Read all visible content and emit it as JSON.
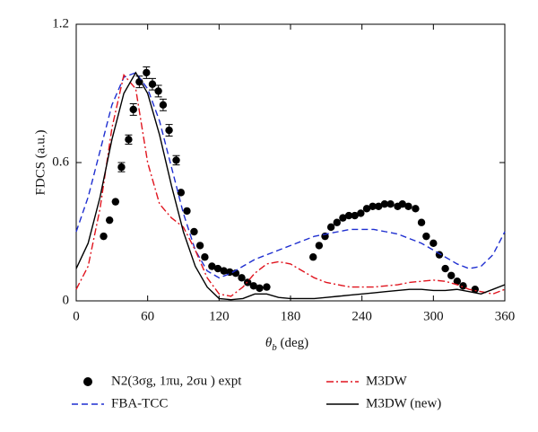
{
  "chart_data": {
    "type": "line",
    "xlabel": [
      "θ",
      "b",
      " (deg)"
    ],
    "ylabel": "FDCS (a.u.)",
    "xlim": [
      0,
      360
    ],
    "xticks": [
      0,
      60,
      120,
      180,
      240,
      300,
      360
    ],
    "ylim": [
      0,
      1.2
    ],
    "yticks": [
      0,
      0.6,
      1.2
    ],
    "series": [
      {
        "name": "N2(3σg, 1πu, 2σu ) expt",
        "type": "scatter",
        "color": "#000000",
        "x": [
          23,
          28,
          33,
          38,
          44,
          48,
          53,
          59,
          64,
          69,
          73,
          78,
          84,
          88,
          93,
          99,
          104,
          108,
          114,
          119,
          124,
          129,
          134,
          139,
          144,
          149,
          154,
          160,
          199,
          204,
          209,
          214,
          219,
          224,
          229,
          234,
          239,
          244,
          249,
          254,
          259,
          264,
          270,
          274,
          279,
          285,
          290,
          294,
          300,
          305,
          310,
          315,
          320,
          325,
          335
        ],
        "values": [
          0.28,
          0.35,
          0.43,
          0.58,
          0.7,
          0.83,
          0.95,
          0.99,
          0.94,
          0.91,
          0.85,
          0.74,
          0.61,
          0.47,
          0.39,
          0.3,
          0.24,
          0.19,
          0.15,
          0.14,
          0.13,
          0.125,
          0.12,
          0.1,
          0.08,
          0.065,
          0.055,
          0.06,
          0.19,
          0.24,
          0.28,
          0.32,
          0.34,
          0.36,
          0.37,
          0.37,
          0.38,
          0.4,
          0.41,
          0.41,
          0.42,
          0.42,
          0.41,
          0.42,
          0.41,
          0.4,
          0.34,
          0.28,
          0.25,
          0.2,
          0.14,
          0.11,
          0.085,
          0.065,
          0.05
        ],
        "errors": [
          null,
          null,
          null,
          0.02,
          0.02,
          0.025,
          0.025,
          0.025,
          0.025,
          0.025,
          0.025,
          0.025,
          0.02,
          null,
          null,
          null,
          null,
          null,
          null,
          null,
          null,
          null,
          null,
          null,
          null,
          null,
          null,
          null,
          null,
          null,
          null,
          null,
          null,
          null,
          null,
          null,
          null,
          null,
          null,
          null,
          null,
          null,
          null,
          null,
          null,
          null,
          null,
          null,
          null,
          null,
          null,
          null,
          null,
          null,
          null
        ]
      },
      {
        "name": "FBA-TCC",
        "type": "line",
        "color": "#1f2fd0",
        "dash": "dashed",
        "x": [
          0,
          10,
          20,
          30,
          40,
          50,
          60,
          70,
          80,
          90,
          100,
          110,
          120,
          130,
          140,
          150,
          160,
          170,
          180,
          190,
          200,
          210,
          220,
          230,
          240,
          250,
          260,
          270,
          280,
          290,
          300,
          310,
          320,
          330,
          340,
          350,
          360
        ],
        "values": [
          0.3,
          0.45,
          0.65,
          0.85,
          0.97,
          0.99,
          0.92,
          0.78,
          0.58,
          0.38,
          0.22,
          0.13,
          0.1,
          0.12,
          0.15,
          0.18,
          0.2,
          0.22,
          0.24,
          0.26,
          0.28,
          0.29,
          0.3,
          0.31,
          0.31,
          0.31,
          0.3,
          0.29,
          0.27,
          0.25,
          0.22,
          0.19,
          0.16,
          0.14,
          0.15,
          0.2,
          0.3
        ]
      },
      {
        "name": "M3DW",
        "type": "line",
        "color": "#e0141e",
        "dash": "dashdot",
        "x": [
          0,
          10,
          20,
          30,
          40,
          50,
          60,
          70,
          80,
          90,
          100,
          110,
          120,
          130,
          140,
          150,
          160,
          170,
          180,
          190,
          200,
          210,
          220,
          230,
          240,
          250,
          260,
          270,
          280,
          290,
          300,
          310,
          320,
          330,
          340,
          350,
          360
        ],
        "values": [
          0.05,
          0.15,
          0.4,
          0.75,
          0.98,
          0.92,
          0.6,
          0.42,
          0.36,
          0.32,
          0.22,
          0.1,
          0.03,
          0.02,
          0.06,
          0.12,
          0.16,
          0.17,
          0.16,
          0.13,
          0.1,
          0.08,
          0.07,
          0.06,
          0.06,
          0.06,
          0.065,
          0.07,
          0.08,
          0.085,
          0.09,
          0.085,
          0.07,
          0.05,
          0.04,
          0.03,
          0.05
        ]
      },
      {
        "name": "M3DW (new)",
        "type": "line",
        "color": "#000000",
        "dash": "solid",
        "x": [
          0,
          10,
          20,
          30,
          40,
          50,
          60,
          70,
          80,
          90,
          100,
          110,
          120,
          130,
          140,
          150,
          160,
          170,
          180,
          190,
          200,
          210,
          220,
          230,
          240,
          250,
          260,
          270,
          280,
          290,
          300,
          310,
          320,
          330,
          340,
          350,
          360
        ],
        "values": [
          0.14,
          0.25,
          0.45,
          0.7,
          0.9,
          0.99,
          0.9,
          0.72,
          0.5,
          0.3,
          0.15,
          0.06,
          0.01,
          0.005,
          0.01,
          0.03,
          0.03,
          0.015,
          0.01,
          0.01,
          0.01,
          0.015,
          0.02,
          0.025,
          0.03,
          0.035,
          0.04,
          0.045,
          0.05,
          0.05,
          0.045,
          0.045,
          0.05,
          0.04,
          0.03,
          0.05,
          0.07
        ]
      }
    ]
  }
}
